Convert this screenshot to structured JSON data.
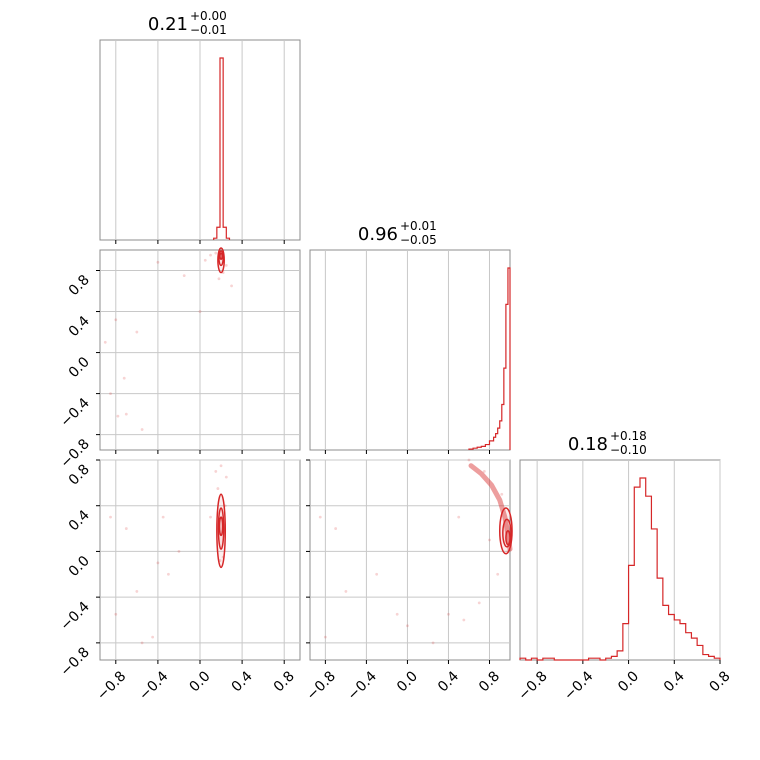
{
  "chart_data": {
    "type": "corner",
    "color": "#d62728",
    "grid": true,
    "x_ticks": [
      "−0.8",
      "−0.4",
      "0.0",
      "0.4",
      "0.8"
    ],
    "y_ticks": [
      "−0.8",
      "−0.4",
      "0.0",
      "0.4",
      "0.8"
    ],
    "params": [
      {
        "median": "0.21",
        "plus": "+0.00",
        "minus": "−0.01",
        "range": [
          -0.95,
          0.95
        ],
        "tick_values": [
          -0.8,
          -0.4,
          0.0,
          0.4,
          0.8
        ],
        "hist_bins": [
          0.13,
          0.16,
          0.19,
          0.22,
          0.25,
          0.28
        ],
        "hist_counts": [
          0.01,
          0.07,
          1.0,
          0.07,
          0.01
        ]
      },
      {
        "median": "0.96",
        "plus": "+0.01",
        "minus": "−0.05",
        "range": [
          -0.95,
          1.0
        ],
        "tick_values": [
          -0.8,
          -0.4,
          0.0,
          0.4,
          0.8
        ],
        "hist_bins": [
          0.6,
          0.64,
          0.68,
          0.72,
          0.76,
          0.8,
          0.84,
          0.86,
          0.88,
          0.9,
          0.92,
          0.94,
          0.96,
          0.98,
          1.0
        ],
        "hist_counts": [
          0.005,
          0.01,
          0.015,
          0.02,
          0.03,
          0.05,
          0.07,
          0.09,
          0.12,
          0.16,
          0.25,
          0.45,
          0.8,
          1.0
        ]
      },
      {
        "median": "0.18",
        "plus": "+0.18",
        "minus": "−0.10",
        "range": [
          -0.95,
          0.8
        ],
        "tick_values": [
          -0.8,
          -0.4,
          0.0,
          0.4,
          0.8
        ],
        "hist_bins": [
          -0.95,
          -0.9,
          -0.85,
          -0.8,
          -0.75,
          -0.7,
          -0.65,
          -0.6,
          -0.55,
          -0.5,
          -0.45,
          -0.4,
          -0.35,
          -0.3,
          -0.25,
          -0.2,
          -0.15,
          -0.1,
          -0.05,
          0.0,
          0.05,
          0.1,
          0.15,
          0.2,
          0.25,
          0.3,
          0.35,
          0.4,
          0.45,
          0.5,
          0.55,
          0.6,
          0.65,
          0.7,
          0.75,
          0.8
        ],
        "hist_counts": [
          0.01,
          0.0,
          0.01,
          0.0,
          0.01,
          0.01,
          0.0,
          0.0,
          0.0,
          0.0,
          0.0,
          0.0,
          0.01,
          0.01,
          0.0,
          0.01,
          0.02,
          0.05,
          0.2,
          0.52,
          0.95,
          1.0,
          0.9,
          0.72,
          0.45,
          0.3,
          0.25,
          0.22,
          0.2,
          0.15,
          0.12,
          0.08,
          0.03,
          0.02,
          0.01
        ]
      }
    ],
    "pairs": [
      {
        "row": 1,
        "col": 0,
        "contours": [
          {
            "cx": 0.2,
            "cy": 0.9,
            "rx": 0.03,
            "ry": 0.12
          },
          {
            "cx": 0.2,
            "cy": 0.92,
            "rx": 0.02,
            "ry": 0.07
          },
          {
            "cx": 0.2,
            "cy": 0.94,
            "rx": 0.01,
            "ry": 0.03
          }
        ],
        "points": [
          [
            -0.9,
            0.1
          ],
          [
            -0.78,
            -0.62
          ],
          [
            -0.7,
            -0.6
          ],
          [
            -0.55,
            -0.75
          ],
          [
            -0.8,
            0.32
          ],
          [
            -0.6,
            0.2
          ],
          [
            -0.4,
            0.88
          ],
          [
            -0.15,
            0.75
          ],
          [
            0.0,
            0.4
          ],
          [
            0.05,
            0.9
          ],
          [
            0.15,
            0.97
          ],
          [
            0.25,
            0.85
          ],
          [
            0.3,
            0.65
          ],
          [
            0.1,
            0.95
          ],
          [
            0.22,
            0.78
          ],
          [
            -0.85,
            -0.4
          ],
          [
            -0.72,
            -0.25
          ],
          [
            0.18,
            0.72
          ]
        ]
      },
      {
        "row": 2,
        "col": 0,
        "contours": [
          {
            "cx": 0.2,
            "cy": 0.18,
            "rx": 0.04,
            "ry": 0.32
          },
          {
            "cx": 0.2,
            "cy": 0.2,
            "rx": 0.025,
            "ry": 0.18
          },
          {
            "cx": 0.2,
            "cy": 0.22,
            "rx": 0.015,
            "ry": 0.08
          }
        ],
        "points": [
          [
            -0.85,
            0.3
          ],
          [
            -0.7,
            0.2
          ],
          [
            -0.6,
            -0.35
          ],
          [
            -0.45,
            -0.75
          ],
          [
            -0.55,
            -0.8
          ],
          [
            -0.35,
            0.3
          ],
          [
            -0.4,
            -0.1
          ],
          [
            -0.2,
            0.0
          ],
          [
            0.1,
            0.3
          ],
          [
            0.15,
            0.7
          ],
          [
            0.25,
            0.65
          ],
          [
            0.22,
            -0.05
          ],
          [
            0.17,
            0.55
          ],
          [
            0.24,
            0.4
          ],
          [
            -0.8,
            -0.55
          ],
          [
            -0.3,
            -0.2
          ],
          [
            0.2,
            0.75
          ],
          [
            0.19,
            -0.08
          ]
        ]
      },
      {
        "row": 2,
        "col": 1,
        "contours": [
          {
            "cx": 0.96,
            "cy": 0.18,
            "rx": 0.06,
            "ry": 0.2
          },
          {
            "cx": 0.97,
            "cy": 0.16,
            "rx": 0.04,
            "ry": 0.12
          },
          {
            "cx": 0.98,
            "cy": 0.12,
            "rx": 0.02,
            "ry": 0.06
          }
        ],
        "arc": [
          [
            0.62,
            0.75
          ],
          [
            0.72,
            0.68
          ],
          [
            0.82,
            0.58
          ],
          [
            0.9,
            0.45
          ],
          [
            0.95,
            0.3
          ],
          [
            0.98,
            0.15
          ],
          [
            1.0,
            0.02
          ]
        ],
        "points": [
          [
            -0.85,
            0.3
          ],
          [
            -0.7,
            0.2
          ],
          [
            -0.6,
            -0.35
          ],
          [
            -0.3,
            -0.2
          ],
          [
            -0.1,
            -0.55
          ],
          [
            0.0,
            -0.65
          ],
          [
            0.25,
            -0.8
          ],
          [
            0.4,
            -0.55
          ],
          [
            0.55,
            -0.6
          ],
          [
            0.7,
            -0.45
          ],
          [
            0.8,
            0.1
          ],
          [
            0.88,
            -0.2
          ],
          [
            0.6,
            0.8
          ],
          [
            0.75,
            0.7
          ],
          [
            0.92,
            0.5
          ],
          [
            0.98,
            0.0
          ],
          [
            -0.8,
            -0.75
          ],
          [
            0.5,
            0.3
          ]
        ]
      }
    ]
  }
}
